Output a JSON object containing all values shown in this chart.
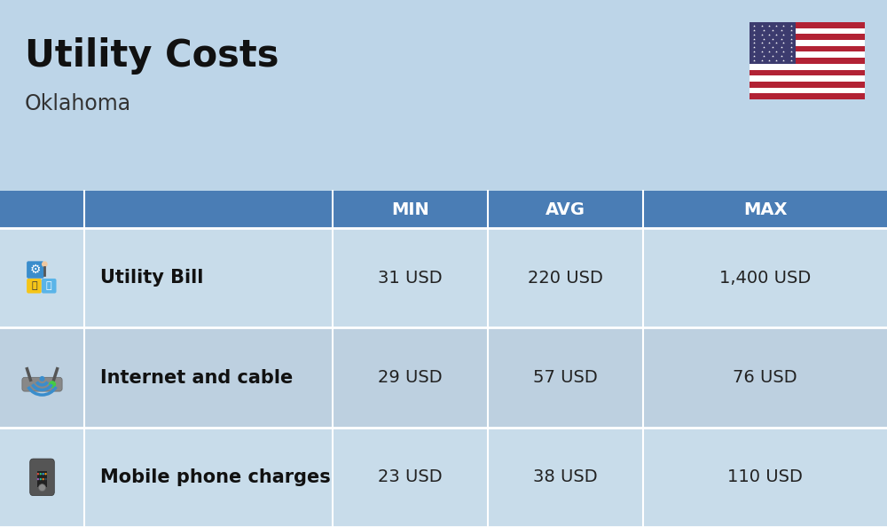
{
  "title": "Utility Costs",
  "subtitle": "Oklahoma",
  "background_color": "#bdd5e8",
  "header_color": "#4a7db5",
  "header_text_color": "#ffffff",
  "row_color_odd": "#c8dcea",
  "row_color_even": "#bdd0e0",
  "col_headers": [
    "MIN",
    "AVG",
    "MAX"
  ],
  "rows": [
    {
      "label": "Utility Bill",
      "min": "31 USD",
      "avg": "220 USD",
      "max": "1,400 USD"
    },
    {
      "label": "Internet and cable",
      "min": "29 USD",
      "avg": "57 USD",
      "max": "76 USD"
    },
    {
      "label": "Mobile phone charges",
      "min": "23 USD",
      "avg": "38 USD",
      "max": "110 USD"
    }
  ],
  "title_fontsize": 30,
  "subtitle_fontsize": 17,
  "header_fontsize": 14,
  "cell_fontsize": 14,
  "label_fontsize": 15
}
